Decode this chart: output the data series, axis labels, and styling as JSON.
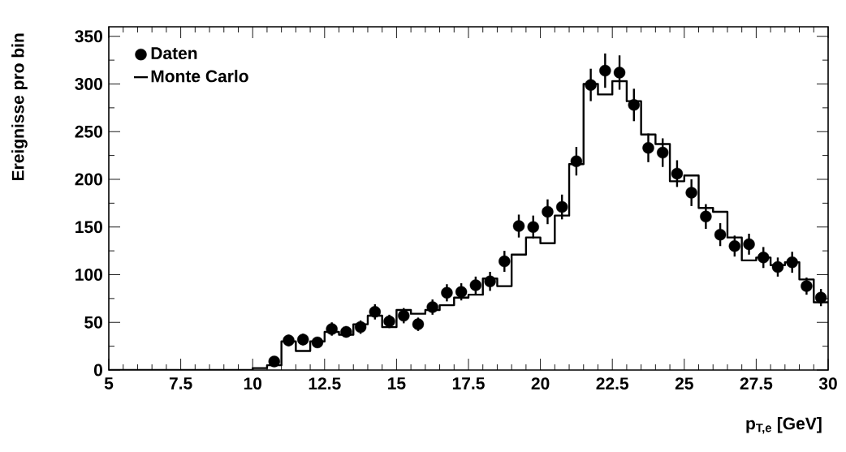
{
  "chart_data": {
    "type": "scatter",
    "xlabel": "p$_{T,e}$   [GeV]",
    "ylabel": "Ereignisse pro bin",
    "xlim": [
      5,
      30
    ],
    "ylim": [
      0,
      360
    ],
    "xticks": [
      5,
      7.5,
      10,
      12.5,
      15,
      17.5,
      20,
      22.5,
      25,
      27.5,
      30
    ],
    "yticks": [
      0,
      50,
      100,
      150,
      200,
      250,
      300,
      350
    ],
    "legend": "top left",
    "grid": false,
    "series": [
      {
        "name": "Daten",
        "type": "scatter",
        "marker": "circle",
        "color": "#000000",
        "x": [
          10.75,
          11.25,
          11.75,
          12.25,
          12.75,
          13.25,
          13.75,
          14.25,
          14.75,
          15.25,
          15.75,
          16.25,
          16.75,
          17.25,
          17.75,
          18.25,
          18.75,
          19.25,
          19.75,
          20.25,
          20.75,
          21.25,
          21.75,
          22.25,
          22.75,
          23.25,
          23.75,
          24.25,
          24.75,
          25.25,
          25.75,
          26.25,
          26.75,
          27.25,
          27.75,
          28.25,
          28.75,
          29.25,
          29.75
        ],
        "values": [
          9,
          31,
          32,
          29,
          43,
          40,
          45,
          61,
          51,
          57,
          48,
          66,
          81,
          82,
          89,
          93,
          114,
          151,
          150,
          166,
          171,
          219,
          299,
          314,
          312,
          278,
          233,
          228,
          206,
          186,
          161,
          142,
          130,
          132,
          118,
          108,
          113,
          88,
          76
        ],
        "errors": [
          3,
          6,
          6,
          5,
          7,
          6,
          7,
          8,
          7,
          8,
          7,
          8,
          9,
          9,
          9,
          10,
          11,
          12,
          12,
          13,
          13,
          15,
          17,
          18,
          18,
          17,
          15,
          15,
          14,
          14,
          13,
          12,
          11,
          11,
          11,
          10,
          11,
          9,
          9
        ]
      },
      {
        "name": "Monte Carlo",
        "type": "histogram",
        "line_style": "solid",
        "color": "#000000",
        "bins": [
          5,
          5.5,
          6,
          6.5,
          7,
          7.5,
          8,
          8.5,
          9,
          9.5,
          10,
          10.5,
          11,
          11.5,
          12,
          12.5,
          13,
          13.5,
          14,
          14.5,
          15,
          15.5,
          16,
          16.5,
          17,
          17.5,
          18,
          18.5,
          19,
          19.5,
          20,
          20.5,
          21,
          21.5,
          22,
          22.5,
          23,
          23.5,
          24,
          24.5,
          25,
          25.5,
          26,
          26.5,
          27,
          27.5,
          28,
          28.5,
          29,
          29.5,
          30
        ],
        "values": [
          0,
          0,
          0,
          0,
          0,
          0,
          0,
          0,
          0,
          0,
          2,
          5,
          30,
          20,
          30,
          40,
          37,
          48,
          57,
          45,
          63,
          59,
          63,
          68,
          76,
          79,
          96,
          88,
          121,
          139,
          133,
          162,
          216,
          300,
          289,
          303,
          282,
          247,
          237,
          198,
          204,
          170,
          166,
          139,
          115,
          118,
          110,
          113,
          95,
          71
        ]
      }
    ]
  }
}
